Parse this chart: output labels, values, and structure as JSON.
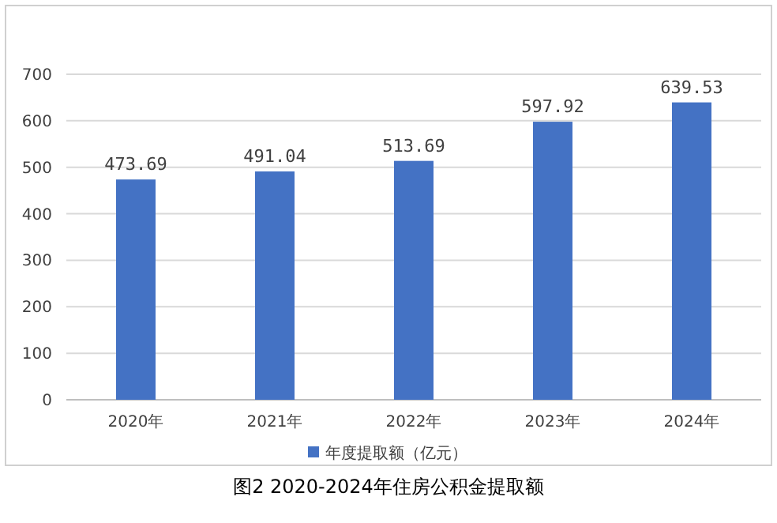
{
  "chart_data": {
    "type": "bar",
    "title": "图2 2020-2024年住房公积金提取额",
    "categories": [
      "2020年",
      "2021年",
      "2022年",
      "2023年",
      "2024年"
    ],
    "series": [
      {
        "name": "年度提取额（亿元）",
        "color": "#4472c4",
        "values": [
          473.69,
          491.04,
          513.69,
          597.92,
          639.53
        ]
      }
    ],
    "ylim": [
      0,
      700
    ],
    "yticks": [
      0,
      100,
      200,
      300,
      400,
      500,
      600,
      700
    ],
    "grid": "y",
    "legend": "bottom",
    "data_labels": true
  }
}
